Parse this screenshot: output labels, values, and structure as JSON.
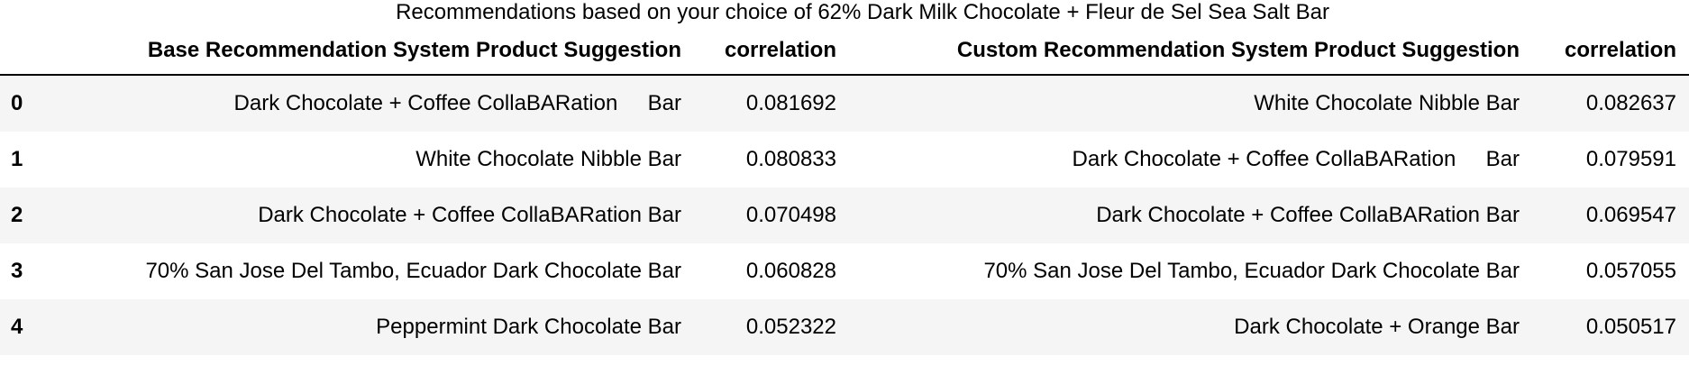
{
  "caption": "Recommendations based on your choice of 62% Dark Milk Chocolate + Fleur de Sel Sea Salt Bar",
  "columns": {
    "index": "",
    "base": "Base Recommendation System Product Suggestion",
    "base_corr": "correlation",
    "custom": "Custom Recommendation System Product Suggestion",
    "custom_corr": "correlation"
  },
  "rows": [
    {
      "idx": "0",
      "base": "Dark Chocolate + Coffee CollaBARation     Bar",
      "base_corr": "0.081692",
      "custom": "White Chocolate Nibble Bar",
      "custom_corr": "0.082637"
    },
    {
      "idx": "1",
      "base": "White Chocolate Nibble Bar",
      "base_corr": "0.080833",
      "custom": "Dark Chocolate + Coffee CollaBARation     Bar",
      "custom_corr": "0.079591"
    },
    {
      "idx": "2",
      "base": "Dark Chocolate + Coffee CollaBARation Bar",
      "base_corr": "0.070498",
      "custom": "Dark Chocolate + Coffee CollaBARation Bar",
      "custom_corr": "0.069547"
    },
    {
      "idx": "3",
      "base": "70% San Jose Del Tambo, Ecuador Dark Chocolate Bar",
      "base_corr": "0.060828",
      "custom": "70% San Jose Del Tambo, Ecuador Dark Chocolate Bar",
      "custom_corr": "0.057055"
    },
    {
      "idx": "4",
      "base": "Peppermint Dark Chocolate Bar",
      "base_corr": "0.052322",
      "custom": "Dark Chocolate + Orange Bar",
      "custom_corr": "0.050517"
    }
  ]
}
